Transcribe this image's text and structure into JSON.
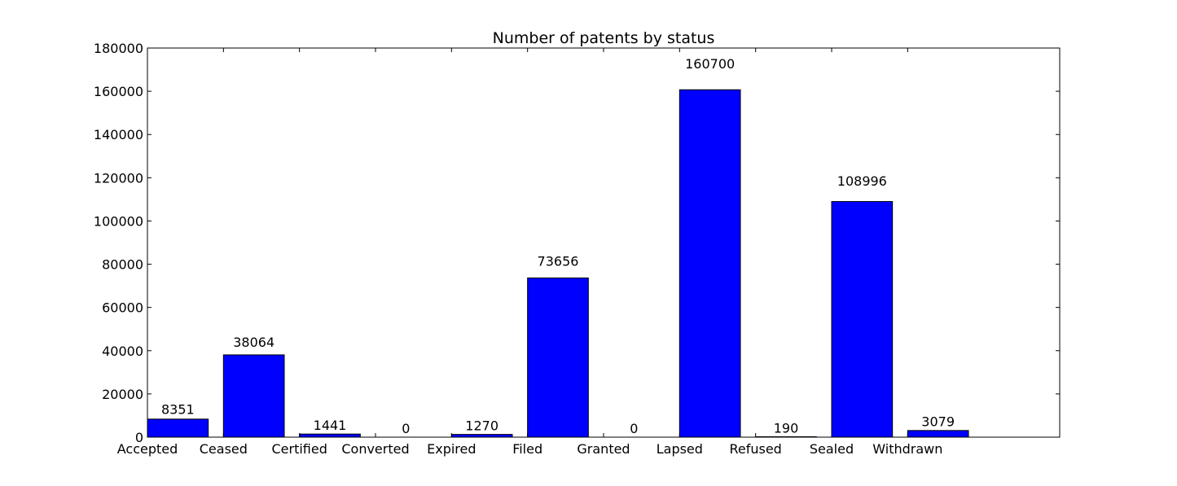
{
  "chart_data": {
    "type": "bar",
    "title": "Number of patents by status",
    "xlabel": "",
    "ylabel": "",
    "categories": [
      "Accepted",
      "Ceased",
      "Certified",
      "Converted",
      "Expired",
      "Filed",
      "Granted",
      "Lapsed",
      "Refused",
      "Sealed",
      "Withdrawn"
    ],
    "values": [
      8351,
      38064,
      1441,
      0,
      1270,
      73656,
      0,
      160700,
      190,
      108996,
      3079
    ],
    "ylim": [
      0,
      180000
    ],
    "yticks": [
      0,
      20000,
      40000,
      60000,
      80000,
      100000,
      120000,
      140000,
      160000,
      180000
    ],
    "xlim": [
      0,
      12
    ],
    "grid": false,
    "bar_color": "#0000ff",
    "edge_color": "#000000"
  }
}
